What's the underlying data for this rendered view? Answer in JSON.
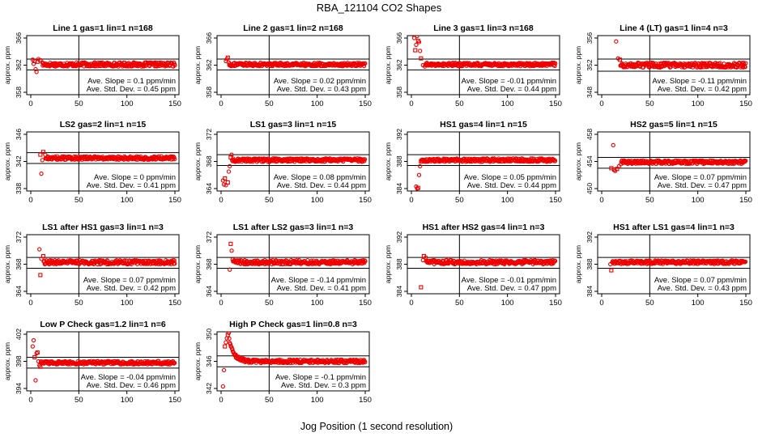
{
  "title": "RBA_121104  CO2 Shapes",
  "xlabel": "Jog Position (1 second resolution)",
  "chart_data": [
    {
      "type": "scatter",
      "title": "Line 1 gas=1 lin=1 n=168",
      "ylabel": "approx. ppm",
      "xlim": [
        0,
        150
      ],
      "xticks": [
        0,
        50,
        100,
        150
      ],
      "ylim": [
        358,
        366
      ],
      "yticks": [
        358,
        362,
        366
      ],
      "ref_lines": [
        362.9,
        361.3
      ],
      "base": 362.1,
      "noise": 0.3,
      "init": [
        [
          2,
          362.8
        ],
        [
          3,
          362.2
        ],
        [
          4,
          362.6
        ],
        [
          5,
          361.4
        ],
        [
          6,
          361.0
        ],
        [
          7,
          362.5
        ],
        [
          8,
          362.9
        ],
        [
          10,
          362.7
        ],
        [
          12,
          362.4
        ]
      ],
      "annotations": [
        "Ave. Slope = 0.1  ppm/min",
        "Ave. Std. Dev. = 0.45  ppm"
      ]
    },
    {
      "type": "scatter",
      "title": "Line 2 gas=1 lin=2 n=168",
      "ylabel": "approx. ppm",
      "xlim": [
        0,
        150
      ],
      "xticks": [
        0,
        50,
        100,
        150
      ],
      "ylim": [
        358,
        366
      ],
      "yticks": [
        358,
        362,
        366
      ],
      "ref_lines": [
        362.9,
        361.3
      ],
      "base": 362.1,
      "noise": 0.25,
      "init": [
        [
          5,
          362.6
        ],
        [
          6,
          362.9
        ],
        [
          7,
          363.1
        ],
        [
          8,
          362.4
        ]
      ],
      "annotations": [
        "Ave. Slope = 0.02  ppm/min",
        "Ave. Std. Dev. = 0.43  ppm"
      ]
    },
    {
      "type": "scatter",
      "title": "Line 3 gas=1 lin=3 n=168",
      "ylabel": "approx. ppm",
      "xlim": [
        0,
        150
      ],
      "xticks": [
        0,
        50,
        100,
        150
      ],
      "ylim": [
        358,
        366
      ],
      "yticks": [
        358,
        362,
        366
      ],
      "ref_lines": [
        362.9,
        361.3
      ],
      "base": 362.1,
      "noise": 0.25,
      "init": [
        [
          2,
          366.5
        ],
        [
          3,
          366.0
        ],
        [
          4,
          364.2
        ],
        [
          5,
          365.0
        ],
        [
          6,
          366.3
        ],
        [
          7,
          365.6
        ],
        [
          8,
          365.4
        ],
        [
          9,
          364.1
        ],
        [
          10,
          363.0
        ],
        [
          12,
          362.0
        ],
        [
          14,
          361.8
        ]
      ],
      "annotations": [
        "Ave. Slope = -0.01  ppm/min",
        "Ave. Std. Dev. = 0.44  ppm"
      ]
    },
    {
      "type": "scatter",
      "title": "Line 4 (LT) gas=1 lin=4 n=3",
      "ylabel": "approx. ppm",
      "xlim": [
        0,
        150
      ],
      "xticks": [
        0,
        50,
        100,
        150
      ],
      "ylim": [
        348,
        356
      ],
      "yticks": [
        348,
        352,
        356
      ],
      "ref_lines": [
        352.9,
        351.1
      ],
      "base": 352.0,
      "noise": 0.35,
      "init": [
        [
          15,
          355.5
        ],
        [
          17,
          353.0
        ],
        [
          19,
          352.8
        ]
      ],
      "annotations": [
        "Ave. Slope = -0.11  ppm/min",
        "Ave. Std. Dev. = 0.42  ppm"
      ]
    },
    {
      "type": "scatter",
      "title": "LS2 gas=2 lin=1 n=15",
      "ylabel": "approx. ppm",
      "xlim": [
        0,
        150
      ],
      "xticks": [
        0,
        50,
        100,
        150
      ],
      "ylim": [
        338,
        346
      ],
      "yticks": [
        338,
        342,
        346
      ],
      "ref_lines": [
        343.3,
        341.7
      ],
      "base": 342.5,
      "noise": 0.25,
      "init": [
        [
          10,
          343.0
        ],
        [
          11,
          340.2
        ],
        [
          12,
          342.2
        ],
        [
          13,
          343.4
        ],
        [
          15,
          343.0
        ]
      ],
      "annotations": [
        "Ave. Slope = 0  ppm/min",
        "Ave. Std. Dev. = 0.41  ppm"
      ]
    },
    {
      "type": "scatter",
      "title": "LS1 gas=3 lin=1 n=15",
      "ylabel": "approx. ppm",
      "xlim": [
        0,
        150
      ],
      "xticks": [
        0,
        50,
        100,
        150
      ],
      "ylim": [
        364,
        372
      ],
      "yticks": [
        364,
        368,
        372
      ],
      "ref_lines": [
        369.0,
        367.4
      ],
      "base": 368.2,
      "noise": 0.25,
      "init": [
        [
          2,
          365.2
        ],
        [
          3,
          364.6
        ],
        [
          4,
          365.5
        ],
        [
          5,
          364.5
        ],
        [
          7,
          364.9
        ],
        [
          8,
          366.5
        ],
        [
          9,
          367.3
        ],
        [
          10,
          368.6
        ],
        [
          11,
          369.0
        ]
      ],
      "annotations": [
        "Ave. Slope = 0.08  ppm/min",
        "Ave. Std. Dev. = 0.44  ppm"
      ]
    },
    {
      "type": "scatter",
      "title": "HS1 gas=4 lin=1 n=15",
      "ylabel": "approx. ppm",
      "xlim": [
        0,
        150
      ],
      "xticks": [
        0,
        50,
        100,
        150
      ],
      "ylim": [
        384,
        392
      ],
      "yticks": [
        384,
        388,
        392
      ],
      "ref_lines": [
        389.0,
        387.4
      ],
      "base": 388.2,
      "noise": 0.25,
      "init": [
        [
          5,
          384.3
        ],
        [
          6,
          384.0
        ],
        [
          7,
          384.1
        ],
        [
          8,
          386.0
        ],
        [
          9,
          387.3
        ],
        [
          10,
          388.0
        ]
      ],
      "annotations": [
        "Ave. Slope = 0.05  ppm/min",
        "Ave. Std. Dev. = 0.44  ppm"
      ]
    },
    {
      "type": "scatter",
      "title": "HS2 gas=5 lin=1 n=15",
      "ylabel": "approx. ppm",
      "xlim": [
        0,
        150
      ],
      "xticks": [
        0,
        50,
        100,
        150
      ],
      "ylim": [
        450,
        458
      ],
      "yticks": [
        450,
        454,
        458
      ],
      "ref_lines": [
        454.6,
        453.0
      ],
      "base": 453.9,
      "noise": 0.25,
      "init": [
        [
          10,
          453.0
        ],
        [
          12,
          456.4
        ],
        [
          13,
          452.8
        ],
        [
          14,
          452.6
        ],
        [
          16,
          452.9
        ],
        [
          18,
          453.3
        ],
        [
          20,
          453.6
        ]
      ],
      "annotations": [
        "Ave. Slope = 0.07  ppm/min",
        "Ave. Std. Dev. = 0.47  ppm"
      ]
    },
    {
      "type": "scatter",
      "title": "LS1 after HS1 gas=3 lin=1 n=3",
      "ylabel": "approx. ppm",
      "xlim": [
        0,
        150
      ],
      "xticks": [
        0,
        50,
        100,
        150
      ],
      "ylim": [
        364,
        372
      ],
      "yticks": [
        364,
        368,
        372
      ],
      "ref_lines": [
        369.0,
        367.4
      ],
      "base": 368.3,
      "noise": 0.3,
      "init": [
        [
          9,
          370.2
        ],
        [
          10,
          366.4
        ],
        [
          11,
          368.8
        ],
        [
          13,
          369.2
        ]
      ],
      "annotations": [
        "Ave. Slope = 0.07  ppm/min",
        "Ave. Std. Dev. = 0.42  ppm"
      ]
    },
    {
      "type": "scatter",
      "title": "LS1 after LS2 gas=3 lin=1 n=3",
      "ylabel": "approx. ppm",
      "xlim": [
        0,
        150
      ],
      "xticks": [
        0,
        50,
        100,
        150
      ],
      "ylim": [
        364,
        372
      ],
      "yticks": [
        364,
        368,
        372
      ],
      "ref_lines": [
        369.0,
        367.4
      ],
      "base": 368.3,
      "noise": 0.3,
      "init": [
        [
          9,
          367.2
        ],
        [
          10,
          371.0
        ],
        [
          11,
          370.0
        ],
        [
          12,
          368.7
        ]
      ],
      "annotations": [
        "Ave. Slope = -0.14  ppm/min",
        "Ave. Std. Dev. = 0.41  ppm"
      ]
    },
    {
      "type": "scatter",
      "title": "HS1 after HS2 gas=4 lin=1 n=3",
      "ylabel": "approx. ppm",
      "xlim": [
        0,
        150
      ],
      "xticks": [
        0,
        50,
        100,
        150
      ],
      "ylim": [
        384,
        392
      ],
      "yticks": [
        384,
        388,
        392
      ],
      "ref_lines": [
        389.0,
        387.4
      ],
      "base": 388.3,
      "noise": 0.3,
      "init": [
        [
          10,
          384.6
        ],
        [
          12,
          388.6
        ],
        [
          13,
          389.2
        ],
        [
          15,
          389.0
        ]
      ],
      "annotations": [
        "Ave. Slope = -0.01  ppm/min",
        "Ave. Std. Dev. = 0.47  ppm"
      ]
    },
    {
      "type": "scatter",
      "title": "HS1 after LS1 gas=4 lin=1 n=3",
      "ylabel": "approx. ppm",
      "xlim": [
        0,
        150
      ],
      "xticks": [
        0,
        50,
        100,
        150
      ],
      "ylim": [
        384,
        392
      ],
      "yticks": [
        384,
        388,
        392
      ],
      "ref_lines": [
        389.0,
        387.4
      ],
      "base": 388.3,
      "noise": 0.25,
      "init": [
        [
          9,
          388.0
        ],
        [
          10,
          387.1
        ],
        [
          11,
          388.3
        ]
      ],
      "annotations": [
        "Ave. Slope = 0.07  ppm/min",
        "Ave. Std. Dev. = 0.43  ppm"
      ]
    },
    {
      "type": "scatter",
      "title": "Low P Check gas=1.2 lin=1 n=6",
      "ylabel": "approx. ppm",
      "xlim": [
        0,
        150
      ],
      "xticks": [
        0,
        50,
        100,
        150
      ],
      "ylim": [
        394,
        402
      ],
      "yticks": [
        394,
        398,
        402
      ],
      "ref_lines": [
        398.6,
        397.0
      ],
      "base": 397.8,
      "noise": 0.25,
      "init": [
        [
          2,
          400.2
        ],
        [
          3,
          401.1
        ],
        [
          4,
          398.6
        ],
        [
          5,
          395.2
        ],
        [
          6,
          399.2
        ],
        [
          7,
          399.3
        ],
        [
          8,
          398.0
        ],
        [
          9,
          397.4
        ],
        [
          10,
          397.2
        ]
      ],
      "annotations": [
        "Ave. Slope = -0.04  ppm/min",
        "Ave. Std. Dev. = 0.46  ppm"
      ]
    },
    {
      "type": "scatter",
      "title": "High P Check gas=1 lin=0.8 n=3",
      "ylabel": "approx. ppm",
      "xlim": [
        0,
        150
      ],
      "xticks": [
        0,
        50,
        100,
        150
      ],
      "ylim": [
        342,
        350
      ],
      "yticks": [
        342,
        346,
        350
      ],
      "ref_lines": [
        346.8,
        345.2
      ],
      "base": 346.0,
      "noise": 0.25,
      "decay": {
        "from": 8,
        "amp": 3.5,
        "tau": 5
      },
      "init": [
        [
          2,
          342.3
        ],
        [
          3,
          344.7
        ],
        [
          4,
          348.2
        ],
        [
          5,
          348.8
        ],
        [
          6,
          349.4
        ],
        [
          7,
          349.9
        ],
        [
          8,
          350.2
        ]
      ],
      "annotations": [
        "Ave. Slope = -0.1  ppm/min",
        "Ave. Std. Dev. = 0.3  ppm"
      ]
    }
  ]
}
